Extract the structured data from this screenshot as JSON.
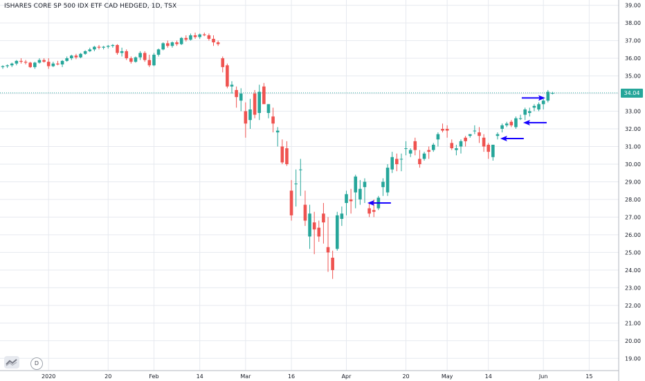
{
  "header": {
    "title": "ISHARES CORE SP 500 IDX ETF CAD HEDGED, 1D, TSX"
  },
  "controls": {
    "interval_button": "D"
  },
  "last_price": {
    "label": "34.04",
    "value": 34.04
  },
  "colors": {
    "up": "#26a69a",
    "down": "#ef5350",
    "arrow": "#1400ff",
    "grid": "#e6e9ef",
    "price_line": "#26a69a"
  },
  "chart_data": {
    "type": "candlestick",
    "title": "ISHARES CORE SP 500 IDX ETF CAD HEDGED, 1D, TSX",
    "ylim": [
      18.5,
      39.3
    ],
    "y_ticks": [
      "19.00",
      "20.00",
      "21.00",
      "22.00",
      "23.00",
      "24.00",
      "25.00",
      "26.00",
      "27.00",
      "28.00",
      "29.00",
      "30.00",
      "31.00",
      "32.00",
      "33.00",
      "34.00",
      "35.00",
      "36.00",
      "37.00",
      "38.00",
      "39.00"
    ],
    "x_ticks": [
      {
        "label": "2020",
        "bar": 10
      },
      {
        "label": "20",
        "bar": 23
      },
      {
        "label": "Feb",
        "bar": 33
      },
      {
        "label": "14",
        "bar": 43
      },
      {
        "label": "Mar",
        "bar": 53
      },
      {
        "label": "16",
        "bar": 63
      },
      {
        "label": "Apr",
        "bar": 75
      },
      {
        "label": "20",
        "bar": 88
      },
      {
        "label": "May",
        "bar": 97
      },
      {
        "label": "14",
        "bar": 106
      },
      {
        "label": "Jun",
        "bar": 118
      },
      {
        "label": "15",
        "bar": 128
      }
    ],
    "candles": [
      [
        35.5,
        35.6,
        35.4,
        35.55
      ],
      [
        35.55,
        35.65,
        35.45,
        35.6
      ],
      [
        35.6,
        35.75,
        35.5,
        35.7
      ],
      [
        35.7,
        35.9,
        35.6,
        35.85
      ],
      [
        35.85,
        36.0,
        35.7,
        35.8
      ],
      [
        35.8,
        35.9,
        35.65,
        35.75
      ],
      [
        35.75,
        35.8,
        35.45,
        35.5
      ],
      [
        35.5,
        35.8,
        35.4,
        35.75
      ],
      [
        35.75,
        36.0,
        35.7,
        35.9
      ],
      [
        35.9,
        36.0,
        35.75,
        35.8
      ],
      [
        35.8,
        36.0,
        35.4,
        35.55
      ],
      [
        35.55,
        35.8,
        35.5,
        35.7
      ],
      [
        35.7,
        35.85,
        35.6,
        35.65
      ],
      [
        35.65,
        35.9,
        35.5,
        35.85
      ],
      [
        35.85,
        36.1,
        35.8,
        36.0
      ],
      [
        36.0,
        36.2,
        35.9,
        36.15
      ],
      [
        36.15,
        36.25,
        35.95,
        36.05
      ],
      [
        36.05,
        36.3,
        36.0,
        36.25
      ],
      [
        36.25,
        36.45,
        36.2,
        36.4
      ],
      [
        36.4,
        36.6,
        36.35,
        36.5
      ],
      [
        36.5,
        36.7,
        36.4,
        36.65
      ],
      [
        36.65,
        36.75,
        36.5,
        36.6
      ],
      [
        36.6,
        36.7,
        36.5,
        36.65
      ],
      [
        36.65,
        36.75,
        36.55,
        36.7
      ],
      [
        36.7,
        36.8,
        36.6,
        36.75
      ],
      [
        36.75,
        36.8,
        36.2,
        36.3
      ],
      [
        36.3,
        36.6,
        36.1,
        36.4
      ],
      [
        36.4,
        36.5,
        35.9,
        36.0
      ],
      [
        36.0,
        36.1,
        35.7,
        35.8
      ],
      [
        35.8,
        36.1,
        35.75,
        36.05
      ],
      [
        36.05,
        36.4,
        35.9,
        36.3
      ],
      [
        36.3,
        36.4,
        35.8,
        35.9
      ],
      [
        35.9,
        36.2,
        35.5,
        35.6
      ],
      [
        35.6,
        36.3,
        35.55,
        36.2
      ],
      [
        36.2,
        36.55,
        36.1,
        36.5
      ],
      [
        36.5,
        36.9,
        36.45,
        36.85
      ],
      [
        36.85,
        37.0,
        36.6,
        36.7
      ],
      [
        36.7,
        36.95,
        36.6,
        36.9
      ],
      [
        36.9,
        37.0,
        36.7,
        36.8
      ],
      [
        36.8,
        37.2,
        36.75,
        37.15
      ],
      [
        37.15,
        37.3,
        36.95,
        37.05
      ],
      [
        37.05,
        37.4,
        37.0,
        37.3
      ],
      [
        37.3,
        37.45,
        37.1,
        37.2
      ],
      [
        37.2,
        37.4,
        37.1,
        37.35
      ],
      [
        37.35,
        37.45,
        37.25,
        37.3
      ],
      [
        37.3,
        37.4,
        37.0,
        37.1
      ],
      [
        37.1,
        37.3,
        36.7,
        36.9
      ],
      [
        36.9,
        37.0,
        36.7,
        36.8
      ],
      [
        36.0,
        36.1,
        35.2,
        35.5
      ],
      [
        35.6,
        35.7,
        34.3,
        34.4
      ],
      [
        34.4,
        34.7,
        34.0,
        34.5
      ],
      [
        34.2,
        34.4,
        33.2,
        33.8
      ],
      [
        33.6,
        34.3,
        33.0,
        34.0
      ],
      [
        33.0,
        33.5,
        31.5,
        32.3
      ],
      [
        32.5,
        33.7,
        32.0,
        33.1
      ],
      [
        34.0,
        34.2,
        32.6,
        32.8
      ],
      [
        32.9,
        34.5,
        32.5,
        34.1
      ],
      [
        34.4,
        34.6,
        33.5,
        33.4
      ],
      [
        32.9,
        33.4,
        32.6,
        33.4
      ],
      [
        32.7,
        33.2,
        31.8,
        32.3
      ],
      [
        31.8,
        32.1,
        31.0,
        31.9
      ],
      [
        31.0,
        31.4,
        30.0,
        30.1
      ],
      [
        30.9,
        31.3,
        29.9,
        30.0
      ],
      [
        28.5,
        29.1,
        26.8,
        27.1
      ],
      [
        28.9,
        29.7,
        27.6,
        28.9
      ],
      [
        29.7,
        30.3,
        28.2,
        29.7
      ],
      [
        27.7,
        28.5,
        26.5,
        26.8
      ],
      [
        25.9,
        27.7,
        25.2,
        27.2
      ],
      [
        26.7,
        27.3,
        24.9,
        26.3
      ],
      [
        26.4,
        26.8,
        25.6,
        25.9
      ],
      [
        27.2,
        27.8,
        25.5,
        26.7
      ],
      [
        25.3,
        27.0,
        23.9,
        25.0
      ],
      [
        24.7,
        25.1,
        23.5,
        24.0
      ],
      [
        25.2,
        27.3,
        25.1,
        27.1
      ],
      [
        26.9,
        27.6,
        26.5,
        27.2
      ],
      [
        27.8,
        28.5,
        27.1,
        28.3
      ],
      [
        28.0,
        28.6,
        27.2,
        27.9
      ],
      [
        28.4,
        29.4,
        27.5,
        29.3
      ],
      [
        28.0,
        29.1,
        27.7,
        28.6
      ],
      [
        28.7,
        29.2,
        27.8,
        29.0
      ],
      [
        27.5,
        27.8,
        27.0,
        27.2
      ],
      [
        27.4,
        28.0,
        27.0,
        27.3
      ],
      [
        27.5,
        28.2,
        27.4,
        28.1
      ],
      [
        28.7,
        29.2,
        28.2,
        29.0
      ],
      [
        28.4,
        30.0,
        28.2,
        29.8
      ],
      [
        29.7,
        30.7,
        29.5,
        30.4
      ],
      [
        30.3,
        30.6,
        29.6,
        30.0
      ],
      [
        30.3,
        30.6,
        29.6,
        30.3
      ],
      [
        30.9,
        31.3,
        30.5,
        30.9
      ],
      [
        30.6,
        30.9,
        30.4,
        30.8
      ],
      [
        31.3,
        31.5,
        30.5,
        30.8
      ],
      [
        30.3,
        30.8,
        29.8,
        30.0
      ],
      [
        30.3,
        30.7,
        30.2,
        30.6
      ],
      [
        30.8,
        31.0,
        30.3,
        30.7
      ],
      [
        30.8,
        31.2,
        30.7,
        31.1
      ],
      [
        31.4,
        31.8,
        31.0,
        31.7
      ],
      [
        32.0,
        32.3,
        31.8,
        31.9
      ],
      [
        32.0,
        32.2,
        31.5,
        31.9
      ],
      [
        31.2,
        31.4,
        30.8,
        30.9
      ],
      [
        30.8,
        31.1,
        30.5,
        30.9
      ],
      [
        31.0,
        31.4,
        30.6,
        31.3
      ],
      [
        31.5,
        31.6,
        31.0,
        31.3
      ],
      [
        31.6,
        31.7,
        31.5,
        31.7
      ],
      [
        31.9,
        32.2,
        31.7,
        31.9
      ],
      [
        31.8,
        32.1,
        31.2,
        31.6
      ],
      [
        31.5,
        31.7,
        30.7,
        31.0
      ],
      [
        31.1,
        31.2,
        30.3,
        30.7
      ],
      [
        30.4,
        31.1,
        30.2,
        31.1
      ],
      [
        31.6,
        31.8,
        31.4,
        31.7
      ],
      [
        32.0,
        32.3,
        31.8,
        32.2
      ],
      [
        32.2,
        32.4,
        32.1,
        32.3
      ],
      [
        32.4,
        32.5,
        32.1,
        32.2
      ],
      [
        32.1,
        32.7,
        32.0,
        32.6
      ],
      [
        32.6,
        32.8,
        32.5,
        32.6
      ],
      [
        32.8,
        33.2,
        32.5,
        33.1
      ],
      [
        32.9,
        33.2,
        32.7,
        33.0
      ],
      [
        33.2,
        33.4,
        33.0,
        33.3
      ],
      [
        33.1,
        33.5,
        33.0,
        33.4
      ],
      [
        33.4,
        33.7,
        33.1,
        33.6
      ],
      [
        33.6,
        34.2,
        33.5,
        34.1
      ],
      [
        34.0,
        34.1,
        33.95,
        34.04
      ]
    ],
    "annotations": [
      {
        "type": "arrow",
        "direction": "left",
        "bar": 82,
        "price": 27.8
      },
      {
        "type": "arrow",
        "direction": "left",
        "bar": 111,
        "price": 31.45
      },
      {
        "type": "arrow",
        "direction": "left",
        "bar": 116,
        "price": 32.35
      },
      {
        "type": "arrow",
        "direction": "right",
        "bar": 116,
        "price": 33.75
      }
    ]
  }
}
